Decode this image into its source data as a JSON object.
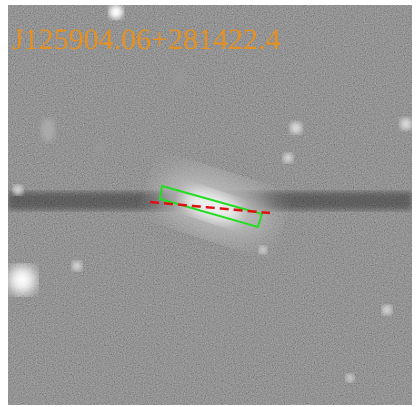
{
  "image": {
    "label": "J125904.06+281422.4"
  }
}
